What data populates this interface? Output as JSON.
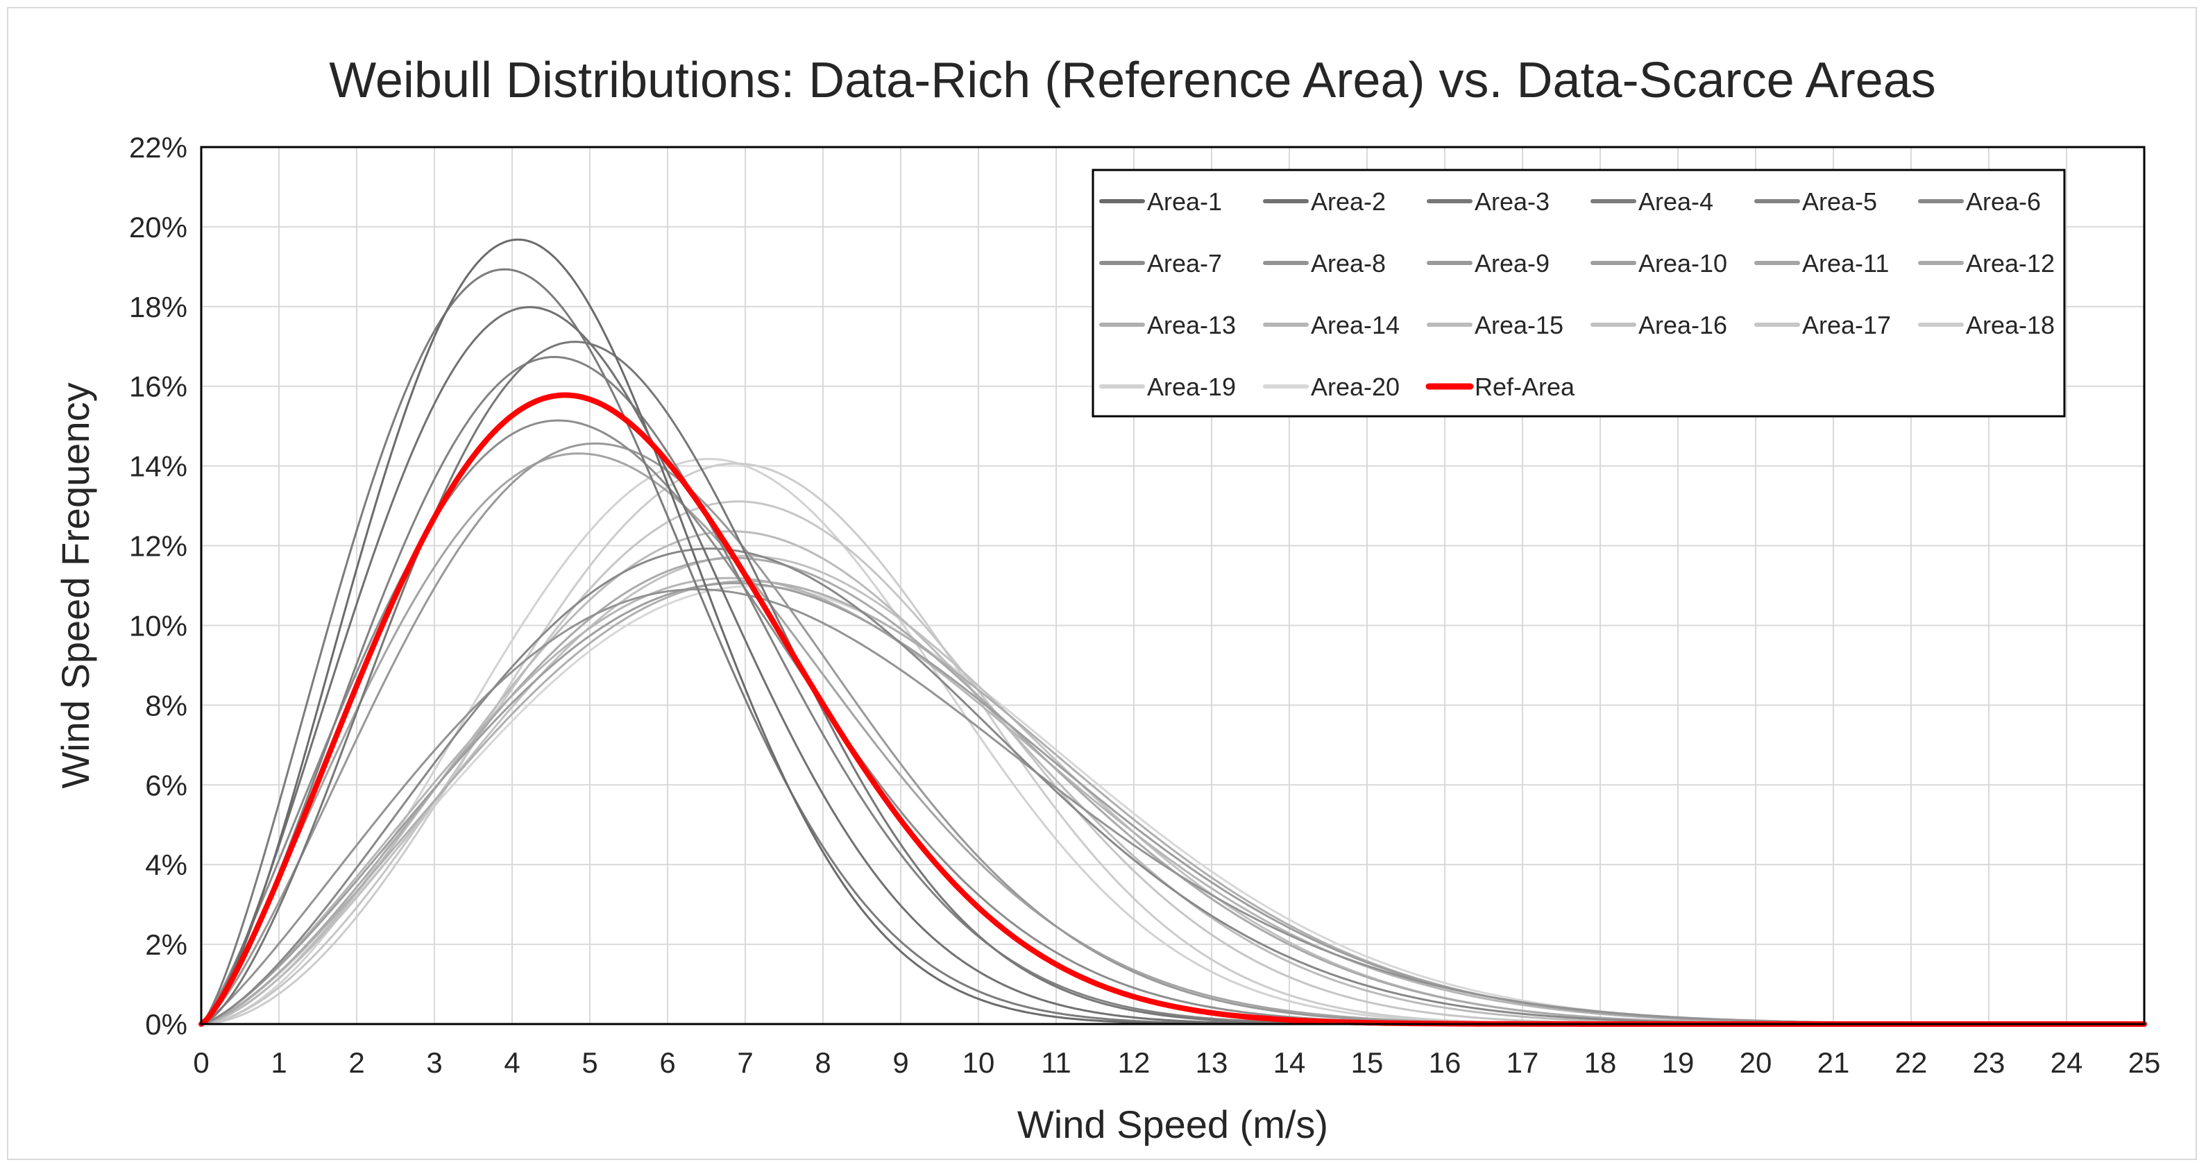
{
  "chart_data": {
    "type": "line",
    "title": "Weibull Distributions: Data-Rich (Reference Area) vs. Data-Scarce Areas",
    "xlabel": "Wind Speed (m/s)",
    "ylabel": "Wind Speed Frequency",
    "xlim": [
      0,
      25
    ],
    "ylim": [
      0,
      0.22
    ],
    "x_ticks": [
      "0",
      "1",
      "2",
      "3",
      "4",
      "5",
      "6",
      "7",
      "8",
      "9",
      "10",
      "11",
      "12",
      "13",
      "14",
      "15",
      "16",
      "17",
      "18",
      "19",
      "20",
      "21",
      "22",
      "23",
      "24",
      "25"
    ],
    "y_ticks": [
      "0%",
      "2%",
      "4%",
      "6%",
      "8%",
      "10%",
      "12%",
      "14%",
      "16%",
      "18%",
      "20%",
      "22%"
    ],
    "grid": true,
    "legend_position": "top-right",
    "series": [
      {
        "name": "Area-1",
        "k": 2.45,
        "c": 5.05,
        "color": "#6b6b6b",
        "width": 3
      },
      {
        "name": "Area-2",
        "k": 2.35,
        "c": 5.35,
        "color": "#717171",
        "width": 3
      },
      {
        "name": "Area-3",
        "k": 2.5,
        "c": 5.9,
        "color": "#777777",
        "width": 3
      },
      {
        "name": "Area-4",
        "k": 2.3,
        "c": 5.0,
        "color": "#7c7c7c",
        "width": 3
      },
      {
        "name": "Area-5",
        "k": 2.35,
        "c": 5.75,
        "color": "#828282",
        "width": 3
      },
      {
        "name": "Area-6",
        "k": 2.4,
        "c": 8.2,
        "color": "#888888",
        "width": 3
      },
      {
        "name": "Area-7",
        "k": 2.2,
        "c": 6.05,
        "color": "#8d8d8d",
        "width": 3
      },
      {
        "name": "Area-8",
        "k": 2.2,
        "c": 8.4,
        "color": "#939393",
        "width": 3
      },
      {
        "name": "Area-9",
        "k": 2.3,
        "c": 6.5,
        "color": "#999999",
        "width": 3
      },
      {
        "name": "Area-10",
        "k": 2.35,
        "c": 8.7,
        "color": "#9e9e9e",
        "width": 3
      },
      {
        "name": "Area-11",
        "k": 2.2,
        "c": 6.4,
        "color": "#a4a4a4",
        "width": 3
      },
      {
        "name": "Area-12",
        "k": 2.45,
        "c": 8.5,
        "color": "#aaaaaa",
        "width": 3
      },
      {
        "name": "Area-13",
        "k": 2.4,
        "c": 8.8,
        "color": "#afafaf",
        "width": 3
      },
      {
        "name": "Area-14",
        "k": 2.35,
        "c": 8.6,
        "color": "#b5b5b5",
        "width": 3
      },
      {
        "name": "Area-15",
        "k": 2.55,
        "c": 8.3,
        "color": "#bbbbbb",
        "width": 3
      },
      {
        "name": "Area-16",
        "k": 2.5,
        "c": 8.6,
        "color": "#c1c1c1",
        "width": 3
      },
      {
        "name": "Area-17",
        "k": 2.7,
        "c": 8.2,
        "color": "#c6c6c6",
        "width": 3
      },
      {
        "name": "Area-18",
        "k": 2.85,
        "c": 8.0,
        "color": "#cccccc",
        "width": 3
      },
      {
        "name": "Area-19",
        "k": 2.75,
        "c": 7.7,
        "color": "#d2d2d2",
        "width": 3
      },
      {
        "name": "Area-20",
        "k": 2.4,
        "c": 8.9,
        "color": "#d7d7d7",
        "width": 3
      },
      {
        "name": "Ref-Area",
        "k": 2.3,
        "c": 6.0,
        "color": "#ff0000",
        "width": 8
      }
    ]
  }
}
